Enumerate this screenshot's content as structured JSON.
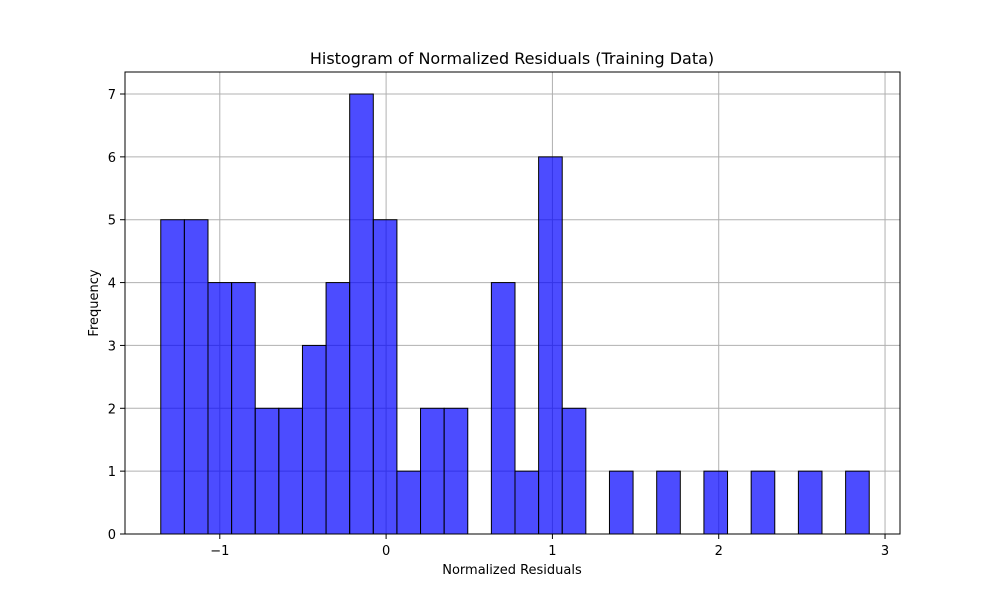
{
  "chart_data": {
    "type": "bar",
    "title": "Histogram of Normalized Residuals (Training Data)",
    "xlabel": "Normalized Residuals",
    "ylabel": "Frequency",
    "xlim": [
      -1.57,
      3.09
    ],
    "ylim": [
      0,
      7.35
    ],
    "xticks": [
      {
        "value": -1,
        "label": "−1"
      },
      {
        "value": 0,
        "label": "0"
      },
      {
        "value": 1,
        "label": "1"
      },
      {
        "value": 2,
        "label": "2"
      },
      {
        "value": 3,
        "label": "3"
      }
    ],
    "yticks": [
      {
        "value": 0,
        "label": "0"
      },
      {
        "value": 1,
        "label": "1"
      },
      {
        "value": 2,
        "label": "2"
      },
      {
        "value": 3,
        "label": "3"
      },
      {
        "value": 4,
        "label": "4"
      },
      {
        "value": 5,
        "label": "5"
      },
      {
        "value": 6,
        "label": "6"
      },
      {
        "value": 7,
        "label": "7"
      }
    ],
    "grid": true,
    "bar_color": "#0000ff",
    "edge_color": "#000000",
    "bins": [
      {
        "start": -1.355,
        "end": -1.213,
        "count": 5
      },
      {
        "start": -1.213,
        "end": -1.071,
        "count": 5
      },
      {
        "start": -1.071,
        "end": -0.929,
        "count": 4
      },
      {
        "start": -0.929,
        "end": -0.787,
        "count": 4
      },
      {
        "start": -0.787,
        "end": -0.645,
        "count": 2
      },
      {
        "start": -0.645,
        "end": -0.503,
        "count": 2
      },
      {
        "start": -0.503,
        "end": -0.361,
        "count": 3
      },
      {
        "start": -0.361,
        "end": -0.219,
        "count": 4
      },
      {
        "start": -0.219,
        "end": -0.077,
        "count": 7
      },
      {
        "start": -0.077,
        "end": 0.065,
        "count": 5
      },
      {
        "start": 0.065,
        "end": 0.207,
        "count": 1
      },
      {
        "start": 0.207,
        "end": 0.349,
        "count": 2
      },
      {
        "start": 0.349,
        "end": 0.491,
        "count": 2
      },
      {
        "start": 0.491,
        "end": 0.633,
        "count": 0
      },
      {
        "start": 0.633,
        "end": 0.775,
        "count": 4
      },
      {
        "start": 0.775,
        "end": 0.917,
        "count": 1
      },
      {
        "start": 0.917,
        "end": 1.059,
        "count": 6
      },
      {
        "start": 1.059,
        "end": 1.201,
        "count": 2
      },
      {
        "start": 1.201,
        "end": 1.343,
        "count": 0
      },
      {
        "start": 1.343,
        "end": 1.485,
        "count": 1
      },
      {
        "start": 1.485,
        "end": 1.627,
        "count": 0
      },
      {
        "start": 1.627,
        "end": 1.769,
        "count": 1
      },
      {
        "start": 1.769,
        "end": 1.911,
        "count": 0
      },
      {
        "start": 1.911,
        "end": 2.053,
        "count": 1
      },
      {
        "start": 2.053,
        "end": 2.195,
        "count": 0
      },
      {
        "start": 2.195,
        "end": 2.337,
        "count": 1
      },
      {
        "start": 2.337,
        "end": 2.479,
        "count": 0
      },
      {
        "start": 2.479,
        "end": 2.621,
        "count": 1
      },
      {
        "start": 2.621,
        "end": 2.763,
        "count": 0
      },
      {
        "start": 2.763,
        "end": 2.905,
        "count": 1
      }
    ]
  }
}
